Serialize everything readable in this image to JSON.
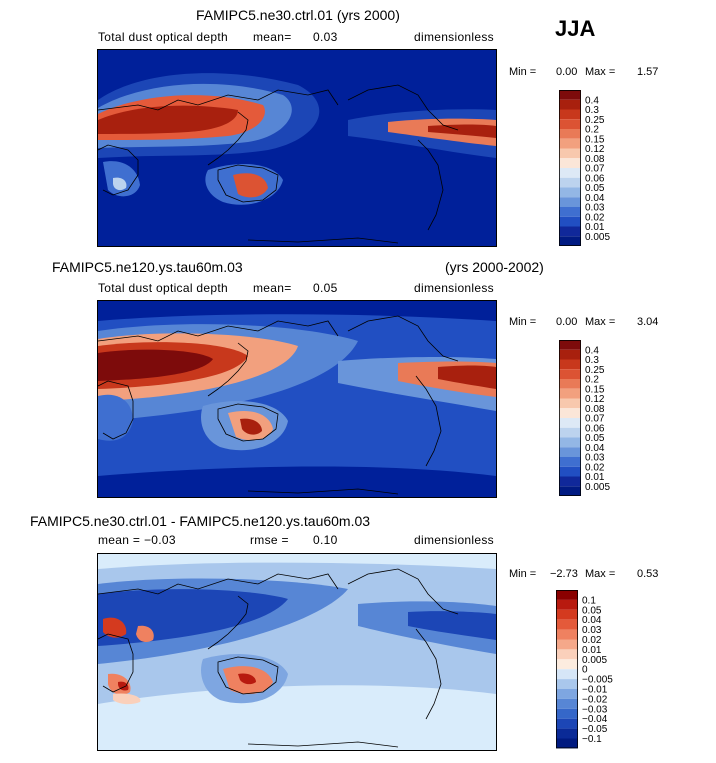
{
  "season": "JJA",
  "panels": [
    {
      "title_left": "FAMIPC5.ne30.ctrl.01 (yrs 2000)",
      "title_right": "",
      "field": "Total dust optical depth",
      "stat1_label": "mean=",
      "stat1_value": "0.03",
      "stat2_label": "",
      "stat2_value": "",
      "units": "dimensionless",
      "min_label": "Min =",
      "min_value": "0.00",
      "max_label": "Max =",
      "max_value": "1.57",
      "colorbar": [
        "0.4",
        "0.3",
        "0.25",
        "0.2",
        "0.15",
        "0.12",
        "0.08",
        "0.07",
        "0.06",
        "0.05",
        "0.04",
        "0.03",
        "0.02",
        "0.01",
        "0.005"
      ]
    },
    {
      "title_left": "FAMIPC5.ne120.ys.tau60m.03",
      "title_right": "(yrs 2000-2002)",
      "field": "Total dust optical depth",
      "stat1_label": "mean=",
      "stat1_value": "0.05",
      "stat2_label": "",
      "stat2_value": "",
      "units": "dimensionless",
      "min_label": "Min =",
      "min_value": "0.00",
      "max_label": "Max =",
      "max_value": "3.04",
      "colorbar": [
        "0.4",
        "0.3",
        "0.25",
        "0.2",
        "0.15",
        "0.12",
        "0.08",
        "0.07",
        "0.06",
        "0.05",
        "0.04",
        "0.03",
        "0.02",
        "0.01",
        "0.005"
      ]
    },
    {
      "title_left": "FAMIPC5.ne30.ctrl.01 - FAMIPC5.ne120.ys.tau60m.03",
      "title_right": "",
      "field": "",
      "stat1_label": "mean =",
      "stat1_value": "−0.03",
      "stat2_label": "rmse =",
      "stat2_value": "0.10",
      "units": "dimensionless",
      "min_label": "Min =",
      "min_value": "−2.73",
      "max_label": "Max =",
      "max_value": "0.53",
      "colorbar": [
        "0.1",
        "0.05",
        "0.04",
        "0.03",
        "0.02",
        "0.01",
        "0.005",
        "0",
        "−0.005",
        "−0.01",
        "−0.02",
        "−0.03",
        "−0.04",
        "−0.05",
        "−0.1"
      ]
    }
  ],
  "colors": {
    "seq_top_to_bottom": [
      "#7d0b0b",
      "#a8200e",
      "#c8381c",
      "#dc5333",
      "#e97a57",
      "#f2a07e",
      "#f8c8ad",
      "#fbe6d8",
      "#dde9f6",
      "#bcd3ee",
      "#93b7e5",
      "#6995da",
      "#3f6fd0",
      "#214fc2",
      "#10289a",
      "#001a82"
    ],
    "div_top_to_bottom": [
      "#8a0000",
      "#b81a0f",
      "#d43a1f",
      "#e45a3a",
      "#ef8160",
      "#f5a88a",
      "#fad0bb",
      "#fcecdf",
      "#d6e6f7",
      "#a9c7ec",
      "#7ea6e1",
      "#5786d5",
      "#3567c9",
      "#1c46b6",
      "#0a2a97",
      "#001a80"
    ],
    "ocean_seq": "#00209a",
    "ocean_diff": "#d9ecfb"
  },
  "chart_data": [
    {
      "type": "heatmap",
      "title": "FAMIPC5.ne30.ctrl.01 (yrs 2000)",
      "variable": "Total dust optical depth",
      "units": "dimensionless",
      "mean": 0.03,
      "min": 0.0,
      "max": 1.57,
      "levels": [
        0.005,
        0.01,
        0.02,
        0.03,
        0.04,
        0.05,
        0.06,
        0.07,
        0.08,
        0.12,
        0.15,
        0.2,
        0.25,
        0.3,
        0.4
      ]
    },
    {
      "type": "heatmap",
      "title": "FAMIPC5.ne120.ys.tau60m.03 (yrs 2000-2002)",
      "variable": "Total dust optical depth",
      "units": "dimensionless",
      "mean": 0.05,
      "min": 0.0,
      "max": 3.04,
      "levels": [
        0.005,
        0.01,
        0.02,
        0.03,
        0.04,
        0.05,
        0.06,
        0.07,
        0.08,
        0.12,
        0.15,
        0.2,
        0.25,
        0.3,
        0.4
      ]
    },
    {
      "type": "heatmap",
      "title": "FAMIPC5.ne30.ctrl.01 - FAMIPC5.ne120.ys.tau60m.03",
      "units": "dimensionless",
      "mean": -0.03,
      "rmse": 0.1,
      "min": -2.73,
      "max": 0.53,
      "levels": [
        -0.1,
        -0.05,
        -0.04,
        -0.03,
        -0.02,
        -0.01,
        -0.005,
        0,
        0.005,
        0.01,
        0.02,
        0.03,
        0.04,
        0.05,
        0.1
      ]
    }
  ]
}
